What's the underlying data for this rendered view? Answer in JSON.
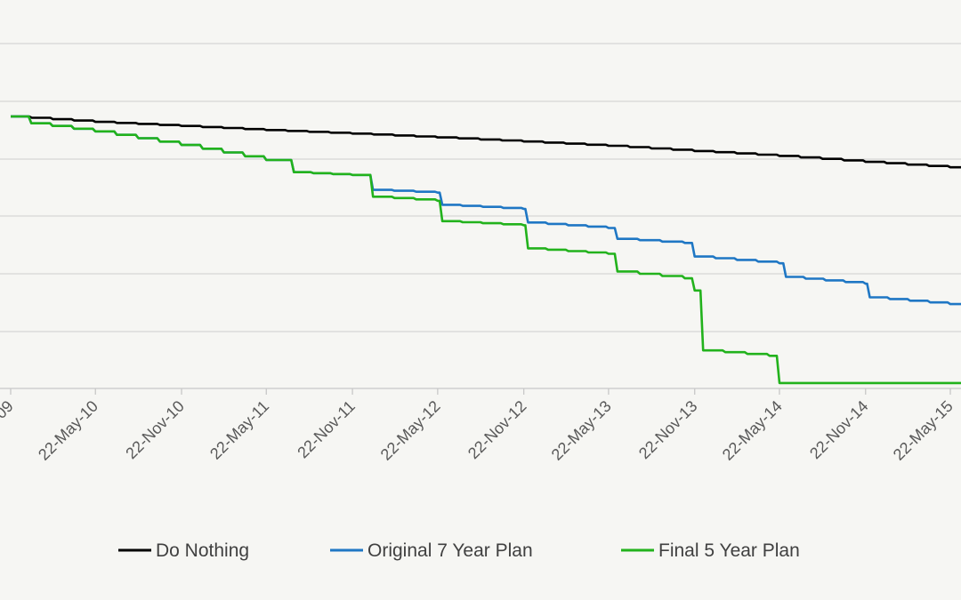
{
  "chart_data": {
    "type": "line",
    "title": "",
    "xlabel": "",
    "ylabel": "",
    "x_ticks": [
      "22-May-10",
      "22-Nov-10",
      "22-May-11",
      "22-Nov-11",
      "22-May-12",
      "22-Nov-12",
      "22-May-13",
      "22-Nov-13",
      "22-May-14",
      "22-Nov-14",
      "22-May-15"
    ],
    "x_tick_partial_left": "09",
    "grid": "horizontal",
    "legend": "bottom",
    "y_axis_labels_visible": false,
    "series": [
      {
        "name": "Do Nothing",
        "color": "#000000",
        "points": [
          [
            "2009-11-22",
            0.0
          ],
          [
            "2010-05-22",
            0.2
          ],
          [
            "2010-11-22",
            0.35
          ],
          [
            "2011-05-22",
            0.5
          ],
          [
            "2011-11-22",
            0.63
          ],
          [
            "2012-05-22",
            0.77
          ],
          [
            "2012-11-22",
            0.92
          ],
          [
            "2013-05-22",
            1.08
          ],
          [
            "2013-11-22",
            1.27
          ],
          [
            "2014-05-22",
            1.45
          ],
          [
            "2014-11-22",
            1.67
          ],
          [
            "2015-05-22",
            1.87
          ],
          [
            "2015-06-22",
            1.93
          ]
        ]
      },
      {
        "name": "Original 7 Year Plan",
        "color": "#1f77c4",
        "points": [
          [
            "2009-11-22",
            0.0
          ],
          [
            "2010-01-05",
            0.25
          ],
          [
            "2010-05-22",
            0.55
          ],
          [
            "2010-11-22",
            1.05
          ],
          [
            "2011-05-22",
            1.6
          ],
          [
            "2011-07-20",
            2.05
          ],
          [
            "2011-11-22",
            2.15
          ],
          [
            "2012-01-05",
            2.7
          ],
          [
            "2012-05-22",
            2.8
          ],
          [
            "2012-06-01",
            3.25
          ],
          [
            "2012-11-22",
            3.4
          ],
          [
            "2012-12-01",
            3.9
          ],
          [
            "2013-05-22",
            4.1
          ],
          [
            "2013-06-10",
            4.5
          ],
          [
            "2013-11-01",
            4.65
          ],
          [
            "2013-11-22",
            5.15
          ],
          [
            "2014-05-22",
            5.4
          ],
          [
            "2014-06-05",
            5.9
          ],
          [
            "2014-11-22",
            6.15
          ],
          [
            "2014-12-01",
            6.65
          ],
          [
            "2015-05-22",
            6.9
          ],
          [
            "2015-06-22",
            7.0
          ]
        ]
      },
      {
        "name": "Final 5 Year Plan",
        "color": "#22b21c",
        "points": [
          [
            "2009-11-22",
            0.0
          ],
          [
            "2010-01-05",
            0.25
          ],
          [
            "2010-05-22",
            0.55
          ],
          [
            "2010-11-22",
            1.05
          ],
          [
            "2011-05-22",
            1.6
          ],
          [
            "2011-07-20",
            2.05
          ],
          [
            "2011-11-22",
            2.15
          ],
          [
            "2012-01-05",
            2.95
          ],
          [
            "2012-05-22",
            3.1
          ],
          [
            "2012-06-01",
            3.85
          ],
          [
            "2012-11-22",
            4.0
          ],
          [
            "2012-12-01",
            4.85
          ],
          [
            "2013-05-22",
            5.05
          ],
          [
            "2013-06-10",
            5.7
          ],
          [
            "2013-11-01",
            5.95
          ],
          [
            "2013-11-22",
            6.4
          ],
          [
            "2013-12-10",
            8.6
          ],
          [
            "2014-05-01",
            8.8
          ],
          [
            "2014-05-22",
            9.8
          ],
          [
            "2015-06-22",
            9.8
          ]
        ]
      }
    ]
  }
}
